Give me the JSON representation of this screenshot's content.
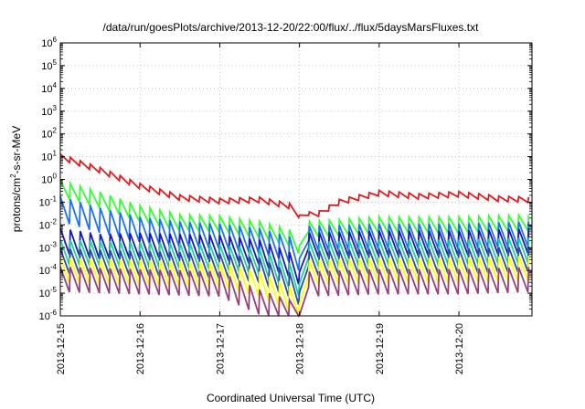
{
  "chart_data": {
    "type": "line",
    "title": "/data/run/goesPlots/archive/2013-12-20/22:00/flux/../flux/5daysMarsFluxes.txt",
    "xlabel": "Coordinated Universal Time (UTC)",
    "ylabel": {
      "base": "protons/cm",
      "exp": "2",
      "rest": "-s-sr-MeV"
    },
    "yscale": "log",
    "ylim_exp": [
      -6,
      6
    ],
    "y_ticks": [
      {
        "base": "10",
        "exp": "6",
        "value": 6
      },
      {
        "base": "10",
        "exp": "5",
        "value": 5
      },
      {
        "base": "10",
        "exp": "4",
        "value": 4
      },
      {
        "base": "10",
        "exp": "3",
        "value": 3
      },
      {
        "base": "10",
        "exp": "2",
        "value": 2
      },
      {
        "base": "10",
        "exp": "1",
        "value": 1
      },
      {
        "base": "10",
        "exp": "0",
        "value": 0
      },
      {
        "base": "10",
        "exp": "-1",
        "value": -1
      },
      {
        "base": "10",
        "exp": "-2",
        "value": -2
      },
      {
        "base": "10",
        "exp": "-3",
        "value": -3
      },
      {
        "base": "10",
        "exp": "-4",
        "value": -4
      },
      {
        "base": "10",
        "exp": "-5",
        "value": -5
      },
      {
        "base": "10",
        "exp": "-6",
        "value": -6
      }
    ],
    "xlim": [
      "2013-12-15",
      "2013-12-20T22:00"
    ],
    "x_ticks": [
      "2013-12-15",
      "2013-12-16",
      "2013-12-17",
      "2013-12-18",
      "2013-12-19",
      "2013-12-20"
    ],
    "grid": true,
    "legend": "none",
    "series_style": "sawtooth",
    "series": [
      {
        "color": "#e41a1c",
        "x": [
          "2013-12-15",
          "2013-12-15T12:00",
          "2013-12-16",
          "2013-12-16T12:00",
          "2013-12-17",
          "2013-12-17T12:00",
          "2013-12-17T22:00",
          "2013-12-18",
          "2013-12-18T06:00",
          "2013-12-18T12:00",
          "2013-12-19",
          "2013-12-19T12:00",
          "2013-12-20",
          "2013-12-20T12:00",
          "2013-12-20T22:00"
        ],
        "log10_value": [
          1.0,
          0.4,
          -0.3,
          -0.8,
          -0.95,
          -0.9,
          -1.2,
          -1.6,
          -1.5,
          -1.0,
          -0.6,
          -0.75,
          -0.65,
          -0.85,
          -0.9
        ]
      },
      {
        "color": "#33ff33",
        "x": [
          "2013-12-15",
          "2013-12-15T12:00",
          "2013-12-16",
          "2013-12-16T12:00",
          "2013-12-17",
          "2013-12-17T12:00",
          "2013-12-17T22:00",
          "2013-12-18",
          "2013-12-18T03:00",
          "2013-12-19",
          "2013-12-20",
          "2013-12-20T22:00"
        ],
        "log10_value": [
          -0.4,
          -0.9,
          -1.5,
          -1.9,
          -1.95,
          -2.2,
          -2.6,
          -2.95,
          -2.2,
          -2.0,
          -2.0,
          -1.9
        ]
      },
      {
        "color": "#1e6fff",
        "x": [
          "2013-12-15",
          "2013-12-15T12:00",
          "2013-12-16",
          "2013-12-16T12:00",
          "2013-12-17",
          "2013-12-17T12:00",
          "2013-12-17T22:00",
          "2013-12-18",
          "2013-12-18T03:00",
          "2013-12-19",
          "2013-12-20",
          "2013-12-20T22:00"
        ],
        "log10_value": [
          -1.3,
          -1.8,
          -2.2,
          -2.4,
          -2.5,
          -2.7,
          -3.1,
          -3.5,
          -2.6,
          -2.5,
          -2.5,
          -2.4
        ]
      },
      {
        "color": "#1a1ab8",
        "x": [
          "2013-12-15",
          "2013-12-15T12:00",
          "2013-12-16",
          "2013-12-16T12:00",
          "2013-12-17",
          "2013-12-17T12:00",
          "2013-12-17T22:00",
          "2013-12-18",
          "2013-12-18T03:00",
          "2013-12-19",
          "2013-12-20",
          "2013-12-20T22:00"
        ],
        "log10_value": [
          -2.7,
          -2.95,
          -2.9,
          -2.95,
          -3.0,
          -3.2,
          -3.8,
          -4.1,
          -2.9,
          -2.8,
          -2.8,
          -2.7
        ]
      },
      {
        "color": "#1fcfa6",
        "x": [
          "2013-12-15",
          "2013-12-16",
          "2013-12-17",
          "2013-12-17T12:00",
          "2013-12-17T22:00",
          "2013-12-18",
          "2013-12-18T03:00",
          "2013-12-19",
          "2013-12-20",
          "2013-12-20T22:00"
        ],
        "log10_value": [
          -3.2,
          -3.3,
          -3.4,
          -3.6,
          -4.3,
          -4.6,
          -3.3,
          -3.2,
          -3.2,
          -3.1
        ]
      },
      {
        "color": "#2b4ca0",
        "x": [
          "2013-12-15",
          "2013-12-16",
          "2013-12-17",
          "2013-12-17T12:00",
          "2013-12-17T22:00",
          "2013-12-18",
          "2013-12-18T03:00",
          "2013-12-19",
          "2013-12-20",
          "2013-12-20T22:00"
        ],
        "log10_value": [
          -3.6,
          -3.7,
          -3.8,
          -4.0,
          -4.7,
          -5.0,
          -3.7,
          -3.6,
          -3.6,
          -3.5
        ]
      },
      {
        "color": "#ffff00",
        "x": [
          "2013-12-15",
          "2013-12-16",
          "2013-12-17",
          "2013-12-17T12:00",
          "2013-12-17T22:00",
          "2013-12-18",
          "2013-12-18T03:00",
          "2013-12-19",
          "2013-12-20",
          "2013-12-20T22:00"
        ],
        "log10_value": [
          -4.0,
          -4.1,
          -4.2,
          -4.6,
          -5.3,
          -5.5,
          -4.1,
          -4.0,
          -4.0,
          -3.9
        ]
      },
      {
        "color": "#9a3f7a",
        "x": [
          "2013-12-15",
          "2013-12-16",
          "2013-12-17",
          "2013-12-17T12:00",
          "2013-12-17T22:00",
          "2013-12-18",
          "2013-12-18T03:00",
          "2013-12-19",
          "2013-12-20",
          "2013-12-20T22:00"
        ],
        "log10_value": [
          -4.4,
          -4.5,
          -4.6,
          -5.4,
          -5.9,
          -6.0,
          -4.6,
          -4.5,
          -4.5,
          -4.4
        ]
      }
    ]
  }
}
